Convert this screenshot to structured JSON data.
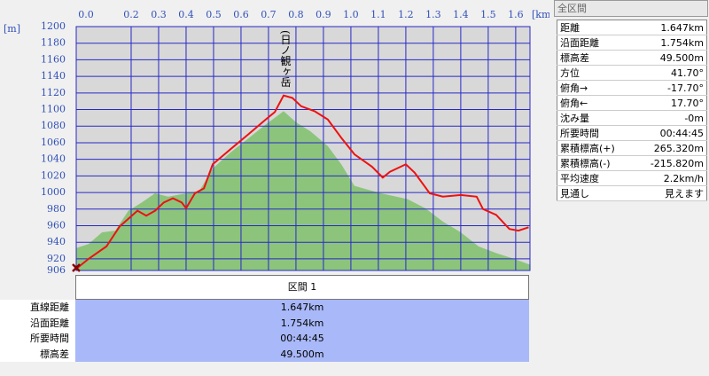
{
  "chart_data": {
    "type": "profile",
    "x_unit": "[km]",
    "y_unit": "[m]",
    "annotation": "(日ノ観ヶ岳",
    "xlim": [
      0,
      1.652
    ],
    "ylim": [
      906,
      1200
    ],
    "xticks": [
      {
        "value": 0,
        "label": "0.0"
      },
      0.2,
      0.3,
      0.4,
      0.5,
      0.6,
      0.7,
      0.8,
      0.9,
      {
        "value": 1,
        "label": "1.0"
      },
      1.1,
      1.2,
      1.3,
      1.4,
      1.5,
      1.6
    ],
    "yticks": [
      906,
      920,
      940,
      960,
      980,
      1000,
      1020,
      1040,
      1060,
      1080,
      1100,
      1120,
      1140,
      1160,
      1180,
      1200
    ],
    "grid": true,
    "series": [
      {
        "color": "#8cc47c",
        "fill": true,
        "x": [
          0,
          0.045,
          0.094,
          0.142,
          0.19,
          0.239,
          0.287,
          0.335,
          0.4,
          0.448,
          0.497,
          0.561,
          0.626,
          0.69,
          0.755,
          0.803,
          0.852,
          0.916,
          0.965,
          1.013,
          1.11,
          1.206,
          1.271,
          1.335,
          1.4,
          1.465,
          1.529,
          1.594,
          1.652
        ],
        "values": [
          933,
          938,
          952,
          954,
          978,
          988,
          999,
          995,
          999,
          1002,
          1029,
          1048,
          1065,
          1082,
          1098,
          1084,
          1074,
          1056,
          1034,
          1008,
          999,
          992,
          981,
          965,
          952,
          935,
          927,
          920,
          913
        ]
      },
      {
        "color": "#ee1111",
        "fill": false,
        "x": [
          0,
          0.045,
          0.11,
          0.158,
          0.223,
          0.255,
          0.287,
          0.319,
          0.352,
          0.384,
          0.4,
          0.432,
          0.465,
          0.497,
          0.561,
          0.626,
          0.69,
          0.723,
          0.755,
          0.787,
          0.819,
          0.868,
          0.916,
          0.965,
          1.013,
          1.077,
          1.116,
          1.142,
          1.2,
          1.232,
          1.287,
          1.335,
          1.4,
          1.458,
          1.481,
          1.529,
          1.577,
          1.61,
          1.647
        ],
        "values": [
          908,
          920,
          935,
          959,
          978,
          972,
          978,
          988,
          993,
          988,
          981,
          999,
          1005,
          1034,
          1052,
          1070,
          1088,
          1097,
          1117,
          1114,
          1104,
          1098,
          1088,
          1066,
          1046,
          1031,
          1018,
          1025,
          1034,
          1024,
          999,
          995,
          997,
          995,
          980,
          973,
          956,
          954,
          958
        ]
      }
    ]
  },
  "summary_panel": {
    "title": "全区間",
    "rows": [
      [
        "距離",
        "1.647km"
      ],
      [
        "沿面距離",
        "1.754km"
      ],
      [
        "標高差",
        "49.500m"
      ],
      [
        "方位",
        "41.70°"
      ],
      [
        "俯角→",
        "-17.70°"
      ],
      [
        "俯角←",
        "17.70°"
      ],
      [
        "沈み量",
        "-0m"
      ],
      [
        "所要時間",
        "00:44:45"
      ],
      [
        "累積標高(+)",
        "265.320m"
      ],
      [
        "累積標高(-)",
        "-215.820m"
      ],
      [
        "平均速度",
        "2.2km/h"
      ],
      [
        "見通し",
        "見えます"
      ]
    ]
  },
  "section_table": {
    "header": "区間 1",
    "rows": [
      [
        "直線距離",
        "1.647km"
      ],
      [
        "沿面距離",
        "1.754km"
      ],
      [
        "所要時間",
        "00:44:45"
      ],
      [
        "標高差",
        "49.500m"
      ]
    ]
  }
}
